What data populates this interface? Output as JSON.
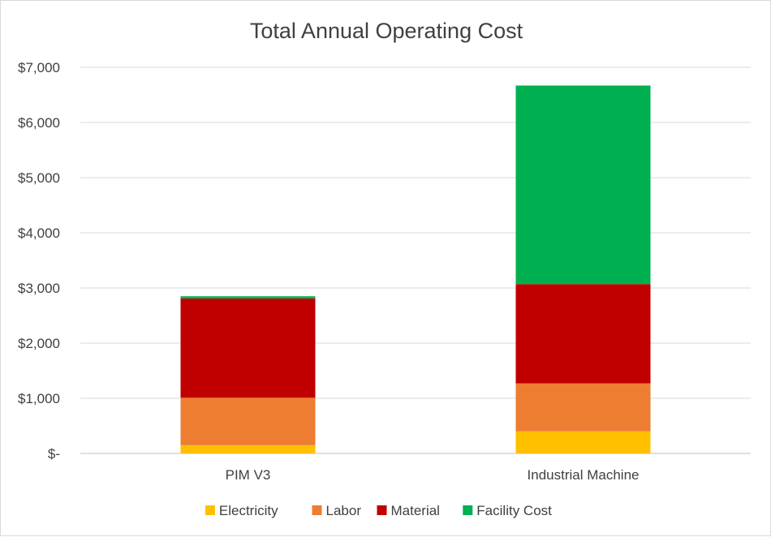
{
  "chart_data": {
    "type": "bar",
    "stacked": true,
    "title": "Total Annual Operating Cost",
    "xlabel": "",
    "ylabel": "",
    "categories": [
      "PIM V3",
      "Industrial Machine"
    ],
    "ylim": [
      0,
      7000
    ],
    "yticks": [
      0,
      1000,
      2000,
      3000,
      4000,
      5000,
      6000,
      7000
    ],
    "ytick_labels": [
      "$-",
      "$1,000",
      "$2,000",
      "$3,000",
      "$4,000",
      "$5,000",
      "$6,000",
      "$7,000"
    ],
    "grid": true,
    "legend_position": "bottom",
    "series": [
      {
        "name": "Electricity",
        "color": "#FFC000",
        "values": [
          150,
          400
        ]
      },
      {
        "name": "Labor",
        "color": "#ED7D31",
        "values": [
          860,
          870
        ]
      },
      {
        "name": "Material",
        "color": "#C00000",
        "values": [
          1800,
          1800
        ]
      },
      {
        "name": "Facility Cost",
        "color": "#00B050",
        "values": [
          40,
          3600
        ]
      }
    ]
  }
}
